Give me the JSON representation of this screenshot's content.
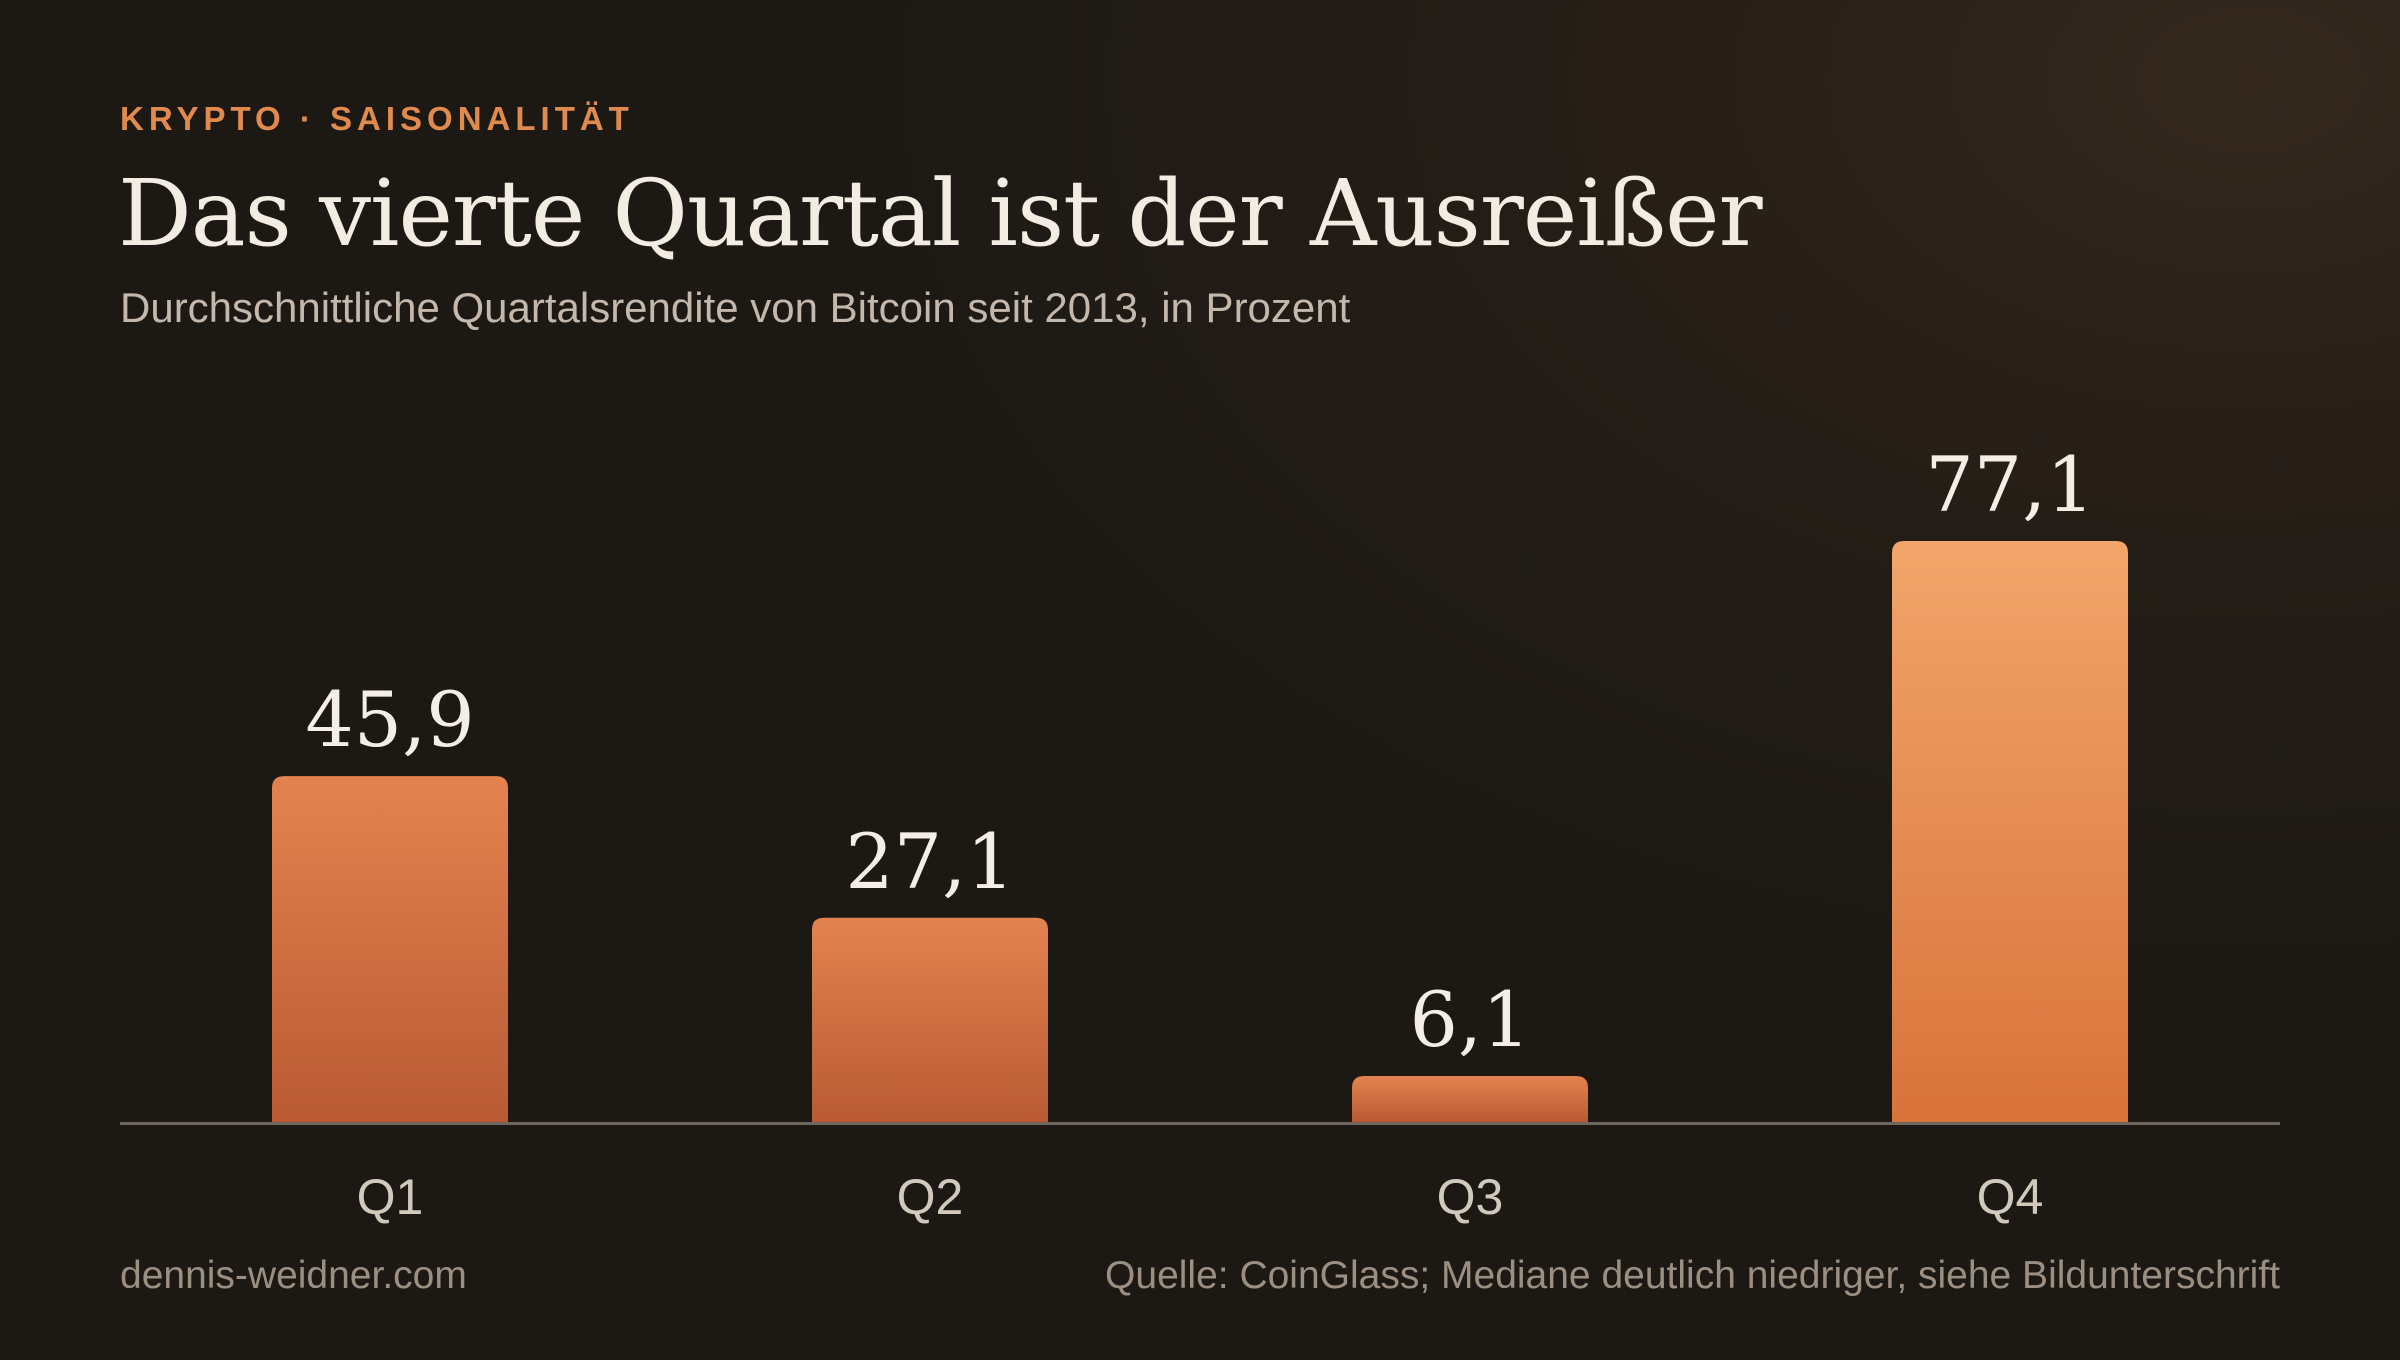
{
  "header": {
    "kicker": "KRYPTO · SAISONALITÄT",
    "title": "Das vierte Quartal ist der Ausreißer",
    "subtitle": "Durchschnittliche Quartalsrendite von Bitcoin seit 2013, in Prozent"
  },
  "footer": {
    "site": "dennis-weidner.com",
    "source": "Quelle: CoinGlass; Mediane deutlich niedriger, siehe Bildunterschrift"
  },
  "chart_data": {
    "type": "bar",
    "title": "Das vierte Quartal ist der Ausreißer",
    "subtitle": "Durchschnittliche Quartalsrendite von Bitcoin seit 2013, in Prozent",
    "categories": [
      "Q1",
      "Q2",
      "Q3",
      "Q4"
    ],
    "values": [
      45.9,
      27.1,
      6.1,
      77.1
    ],
    "value_labels": [
      "45,9",
      "27,1",
      "6,1",
      "77,1"
    ],
    "xlabel": "",
    "ylabel": "",
    "ylim": [
      0,
      77.1
    ],
    "grid": false,
    "legend": "none",
    "colors": {
      "bar_top": "#e3834f",
      "bar_bottom": "#b95a33",
      "highlight_top": "#f2a56a",
      "highlight_bottom": "#d8733a",
      "baseline": "#6e665c",
      "kicker": "#e08a4e"
    },
    "highlight_category": "Q4"
  }
}
